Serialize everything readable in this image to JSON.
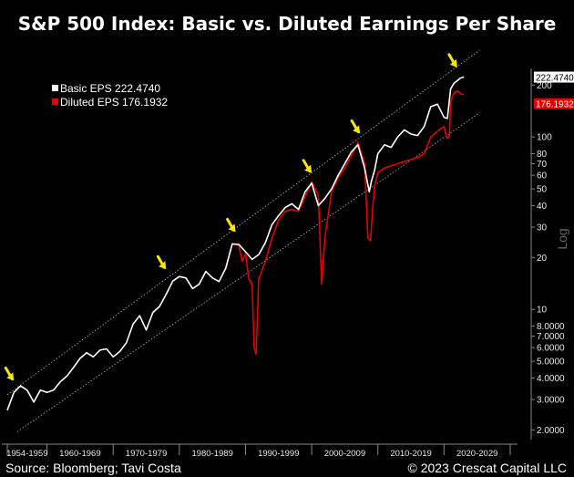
{
  "title": "S&P 500 Index: Basic vs. Diluted Earnings Per Share",
  "footer": {
    "source": "Source: Bloomberg; Tavi Costa",
    "copyright": "© 2023 Crescat Capital LLC"
  },
  "colors": {
    "basic": "#ffffff",
    "diluted": "#e00000",
    "arrow": "#f5e800",
    "background": "#000000"
  },
  "chart_data": {
    "type": "line",
    "yscale": "log",
    "ylabel": "Log",
    "ylim": [
      1.8,
      300
    ],
    "grid": false,
    "legend_position": "top-left",
    "x_tick_labels": [
      "1954-1959",
      "1960-1969",
      "1970-1979",
      "1980-1989",
      "1990-1999",
      "2000-2009",
      "2010-2019",
      "2020-2029"
    ],
    "y_ticks": [
      2,
      3,
      4,
      5,
      6,
      7,
      8,
      10,
      20,
      30,
      40,
      50,
      60,
      70,
      80,
      100,
      200
    ],
    "y_tick_labels": [
      "2.0000",
      "3.0000",
      "4.0000",
      "5.0000",
      "6.0000",
      "7.0000",
      "8.0000",
      "10",
      "20",
      "30",
      "40",
      "50",
      "60",
      "70",
      "80",
      "100",
      "200"
    ],
    "series": [
      {
        "name": "Basic EPS",
        "last_value": "222.4740",
        "x": [
          1954,
          1955,
          1956,
          1957,
          1958,
          1959,
          1960,
          1961,
          1962,
          1963,
          1964,
          1965,
          1966,
          1967,
          1968,
          1969,
          1970,
          1971,
          1972,
          1973,
          1974,
          1975,
          1976,
          1977,
          1978,
          1979,
          1980,
          1981,
          1982,
          1983,
          1984,
          1985,
          1986,
          1987,
          1988,
          1989,
          1990,
          1991,
          1992,
          1993,
          1994,
          1995,
          1996,
          1997,
          1998,
          1999,
          2000,
          2001,
          2002,
          2003,
          2004,
          2005,
          2006,
          2007,
          2008,
          2008.7,
          2009,
          2009.5,
          2010,
          2011,
          2012,
          2013,
          2014,
          2015,
          2016,
          2017,
          2018,
          2019,
          2020,
          2020.5,
          2021,
          2021.5,
          2022,
          2022.5,
          2023
        ],
        "values": [
          2.6,
          3.3,
          3.6,
          3.4,
          2.9,
          3.4,
          3.3,
          3.4,
          3.8,
          4.1,
          4.6,
          5.2,
          5.6,
          5.3,
          5.8,
          5.9,
          5.3,
          5.7,
          6.4,
          8.2,
          9.2,
          7.6,
          9.6,
          10.4,
          12.2,
          14.6,
          15.5,
          15.2,
          13.2,
          14.0,
          16.6,
          15.2,
          14.5,
          17.3,
          24.0,
          23.8,
          21.6,
          19.5,
          20.8,
          24.4,
          31.0,
          35.0,
          39.0,
          41.0,
          38.0,
          48.0,
          54.0,
          40.0,
          44.0,
          50.0,
          60.0,
          70.0,
          82.0,
          90.0,
          66.0,
          48.0,
          55.0,
          64.0,
          80.0,
          90.0,
          87.0,
          100.0,
          110.0,
          104.0,
          102.0,
          115.0,
          150.0,
          155.0,
          130.0,
          128.0,
          190.0,
          205.0,
          212.0,
          220.0,
          222.474
        ]
      },
      {
        "name": "Diluted EPS",
        "last_value": "176.1932",
        "x": [
          1987,
          1988,
          1989,
          1989.5,
          1990,
          1990.5,
          1991,
          1991.3,
          1991.6,
          1992,
          1993,
          1994,
          1995,
          1996,
          1997,
          1998,
          1999,
          2000,
          2001,
          2001.5,
          2002,
          2003,
          2004,
          2005,
          2006,
          2007,
          2008,
          2008.5,
          2008.9,
          2009.2,
          2009.5,
          2010,
          2011,
          2012,
          2013,
          2014,
          2015,
          2016,
          2017,
          2018,
          2019,
          2020,
          2020.4,
          2020.8,
          2021,
          2021.5,
          2022,
          2022.5,
          2023
        ],
        "values": [
          17.0,
          24.0,
          23.5,
          19.0,
          21.0,
          15.0,
          14.0,
          6.0,
          5.5,
          15.0,
          19.0,
          26.0,
          33.0,
          37.0,
          38.0,
          37.0,
          45.0,
          55.0,
          46.0,
          14.0,
          26.0,
          48.0,
          58.0,
          66.0,
          78.0,
          93.0,
          70.0,
          26.0,
          25.0,
          38.0,
          52.0,
          62.0,
          66.0,
          68.0,
          70.0,
          72.0,
          74.0,
          76.0,
          80.0,
          100.0,
          108.0,
          115.0,
          98.0,
          100.0,
          160.0,
          180.0,
          185.0,
          178.0,
          176.1932
        ]
      }
    ],
    "annotations": [
      {
        "kind": "arrow",
        "x": 1955,
        "y": 3.5
      },
      {
        "kind": "arrow",
        "x": 1978,
        "y": 15.5
      },
      {
        "kind": "arrow",
        "x": 1988.5,
        "y": 25.5
      },
      {
        "kind": "arrow",
        "x": 2000,
        "y": 56
      },
      {
        "kind": "arrow",
        "x": 2007.3,
        "y": 95
      },
      {
        "kind": "arrow",
        "x": 2022,
        "y": 230
      }
    ]
  }
}
